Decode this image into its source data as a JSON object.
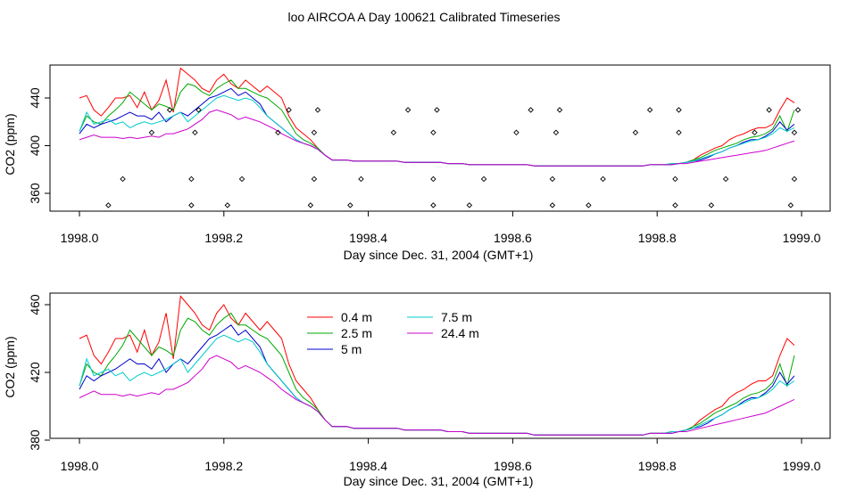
{
  "figure": {
    "title": "loo AIRCOA A  Day 100621  Calibrated Timeseries"
  },
  "chart_data": [
    {
      "type": "scatter+line",
      "title": "",
      "xlabel": "Day since Dec. 31, 2004 (GMT+1)",
      "ylabel": "CO2 (ppm)",
      "xlim": [
        1998.0,
        1999.0
      ],
      "ylim": [
        345,
        472
      ],
      "xticks": [
        "1998.0",
        "1998.2",
        "1998.4",
        "1998.6",
        "1998.8",
        "1999.0"
      ],
      "yticks": [
        "360",
        "400",
        "440"
      ],
      "grid": false,
      "points": {
        "name": "",
        "marker": "open-diamond",
        "x": [
          1998.04,
          1998.06,
          1998.1,
          1998.125,
          1998.155,
          1998.155,
          1998.16,
          1998.165,
          1998.205,
          1998.225,
          1998.275,
          1998.29,
          1998.32,
          1998.325,
          1998.325,
          1998.33,
          1998.375,
          1998.39,
          1998.435,
          1998.455,
          1998.49,
          1998.49,
          1998.49,
          1998.495,
          1998.54,
          1998.56,
          1998.605,
          1998.625,
          1998.655,
          1998.655,
          1998.66,
          1998.665,
          1998.705,
          1998.725,
          1998.77,
          1998.79,
          1998.825,
          1998.825,
          1998.83,
          1998.83,
          1998.875,
          1998.895,
          1998.935,
          1998.955,
          1998.985,
          1998.99,
          1998.99,
          1998.995
        ],
        "y": [
          350,
          372,
          411,
          430,
          350,
          372,
          411,
          430,
          350,
          372,
          411,
          430,
          350,
          372,
          411,
          430,
          350,
          372,
          411,
          430,
          350,
          372,
          411,
          430,
          350,
          372,
          411,
          430,
          350,
          372,
          411,
          430,
          350,
          372,
          411,
          430,
          350,
          372,
          411,
          430,
          350,
          372,
          411,
          430,
          350,
          372,
          411,
          430
        ]
      },
      "x": [
        1998.0,
        1998.01,
        1998.02,
        1998.03,
        1998.04,
        1998.05,
        1998.06,
        1998.07,
        1998.08,
        1998.09,
        1998.1,
        1998.11,
        1998.12,
        1998.13,
        1998.14,
        1998.15,
        1998.16,
        1998.17,
        1998.18,
        1998.19,
        1998.2,
        1998.21,
        1998.22,
        1998.23,
        1998.24,
        1998.25,
        1998.26,
        1998.27,
        1998.28,
        1998.29,
        1998.3,
        1998.31,
        1998.32,
        1998.33,
        1998.34,
        1998.35,
        1998.36,
        1998.37,
        1998.38,
        1998.39,
        1998.4,
        1998.41,
        1998.42,
        1998.43,
        1998.44,
        1998.45,
        1998.46,
        1998.47,
        1998.48,
        1998.49,
        1998.5,
        1998.51,
        1998.52,
        1998.53,
        1998.54,
        1998.55,
        1998.56,
        1998.57,
        1998.58,
        1998.59,
        1998.6,
        1998.61,
        1998.62,
        1998.63,
        1998.64,
        1998.65,
        1998.66,
        1998.67,
        1998.68,
        1998.69,
        1998.7,
        1998.71,
        1998.72,
        1998.73,
        1998.74,
        1998.75,
        1998.76,
        1998.77,
        1998.78,
        1998.79,
        1998.8,
        1998.81,
        1998.82,
        1998.83,
        1998.84,
        1998.85,
        1998.86,
        1998.87,
        1998.88,
        1998.89,
        1998.9,
        1998.91,
        1998.92,
        1998.93,
        1998.94,
        1998.95,
        1998.96,
        1998.97,
        1998.98,
        1998.99
      ],
      "series": [
        {
          "name": "0.4 m",
          "color": "#ff0000",
          "values": [
            440,
            442,
            430,
            425,
            432,
            440,
            440,
            442,
            432,
            445,
            430,
            438,
            455,
            428,
            465,
            460,
            455,
            448,
            445,
            455,
            460,
            452,
            448,
            455,
            450,
            445,
            450,
            445,
            440,
            425,
            415,
            410,
            405,
            398,
            392,
            388,
            388,
            388,
            387,
            387,
            387,
            387,
            387,
            387,
            387,
            386,
            386,
            386,
            386,
            386,
            386,
            385,
            385,
            385,
            384,
            384,
            384,
            384,
            384,
            384,
            384,
            384,
            384,
            383,
            383,
            383,
            383,
            383,
            383,
            383,
            383,
            383,
            383,
            383,
            383,
            383,
            383,
            383,
            383,
            384,
            384,
            384,
            385,
            385,
            386,
            388,
            392,
            395,
            398,
            400,
            405,
            408,
            410,
            413,
            415,
            415,
            418,
            430,
            440,
            436
          ]
        },
        {
          "name": "2.5 m",
          "color": "#00aa00",
          "values": [
            412,
            425,
            420,
            418,
            425,
            430,
            436,
            445,
            440,
            435,
            430,
            435,
            433,
            430,
            445,
            452,
            450,
            445,
            442,
            448,
            452,
            455,
            448,
            448,
            445,
            442,
            440,
            435,
            430,
            420,
            410,
            405,
            402,
            398,
            392,
            388,
            388,
            388,
            387,
            387,
            387,
            387,
            387,
            387,
            387,
            386,
            386,
            386,
            386,
            386,
            386,
            385,
            385,
            385,
            384,
            384,
            384,
            384,
            384,
            384,
            384,
            384,
            384,
            383,
            383,
            383,
            383,
            383,
            383,
            383,
            383,
            383,
            383,
            383,
            383,
            383,
            383,
            383,
            383,
            384,
            384,
            384,
            385,
            385,
            386,
            388,
            390,
            393,
            396,
            398,
            400,
            402,
            405,
            407,
            408,
            410,
            414,
            425,
            412,
            430
          ]
        },
        {
          "name": "5 m",
          "color": "#0000cc",
          "values": [
            410,
            418,
            415,
            418,
            420,
            422,
            425,
            428,
            425,
            425,
            422,
            428,
            420,
            425,
            428,
            425,
            430,
            435,
            440,
            442,
            445,
            448,
            442,
            445,
            440,
            435,
            425,
            420,
            415,
            410,
            405,
            402,
            400,
            397,
            392,
            388,
            388,
            388,
            387,
            387,
            387,
            387,
            387,
            387,
            387,
            386,
            386,
            386,
            386,
            386,
            386,
            385,
            385,
            385,
            384,
            384,
            384,
            384,
            384,
            384,
            384,
            384,
            384,
            383,
            383,
            383,
            383,
            383,
            383,
            383,
            383,
            383,
            383,
            383,
            383,
            383,
            383,
            383,
            383,
            384,
            384,
            384,
            384,
            385,
            386,
            387,
            388,
            390,
            393,
            395,
            398,
            400,
            403,
            405,
            405,
            408,
            412,
            420,
            413,
            418
          ]
        },
        {
          "name": "7.5 m",
          "color": "#00cccc",
          "values": [
            412,
            428,
            418,
            420,
            422,
            418,
            420,
            415,
            418,
            420,
            418,
            420,
            422,
            425,
            428,
            420,
            425,
            430,
            435,
            440,
            442,
            440,
            438,
            440,
            438,
            432,
            425,
            420,
            415,
            410,
            405,
            402,
            400,
            397,
            392,
            388,
            388,
            388,
            387,
            387,
            387,
            387,
            387,
            387,
            387,
            386,
            386,
            386,
            386,
            386,
            386,
            385,
            385,
            385,
            384,
            384,
            384,
            384,
            384,
            384,
            384,
            384,
            384,
            383,
            383,
            383,
            383,
            383,
            383,
            383,
            383,
            383,
            383,
            383,
            383,
            383,
            383,
            383,
            383,
            384,
            384,
            384,
            385,
            385,
            386,
            387,
            389,
            391,
            393,
            395,
            398,
            400,
            402,
            404,
            405,
            407,
            410,
            415,
            412,
            415
          ]
        },
        {
          "name": "24.4 m",
          "color": "#cc00cc",
          "values": [
            405,
            407,
            409,
            407,
            407,
            407,
            406,
            407,
            406,
            407,
            408,
            407,
            410,
            410,
            412,
            414,
            418,
            422,
            428,
            430,
            428,
            426,
            422,
            424,
            422,
            420,
            417,
            414,
            410,
            407,
            404,
            402,
            400,
            397,
            392,
            388,
            388,
            388,
            387,
            387,
            387,
            387,
            387,
            387,
            387,
            386,
            386,
            386,
            386,
            386,
            386,
            385,
            385,
            385,
            384,
            384,
            384,
            384,
            384,
            384,
            384,
            384,
            384,
            383,
            383,
            383,
            383,
            383,
            383,
            383,
            383,
            383,
            383,
            383,
            383,
            383,
            383,
            383,
            383,
            384,
            384,
            384,
            384,
            385,
            385,
            386,
            387,
            388,
            389,
            390,
            391,
            392,
            393,
            394,
            395,
            396,
            398,
            400,
            402,
            404
          ]
        }
      ]
    },
    {
      "type": "line",
      "title": "",
      "xlabel": "Day since Dec. 31, 2004 (GMT+1)",
      "ylabel": "CO2 (ppm)",
      "xlim": [
        1998.0,
        1999.0
      ],
      "ylim": [
        380,
        465
      ],
      "xticks": [
        "1998.0",
        "1998.2",
        "1998.4",
        "1998.6",
        "1998.8",
        "1999.0"
      ],
      "yticks": [
        "380",
        "420",
        "460"
      ],
      "grid": false,
      "legend_position": "top-left",
      "legend": [
        "0.4 m",
        "2.5 m",
        "5 m",
        "7.5 m",
        "24.4 m"
      ]
    }
  ]
}
